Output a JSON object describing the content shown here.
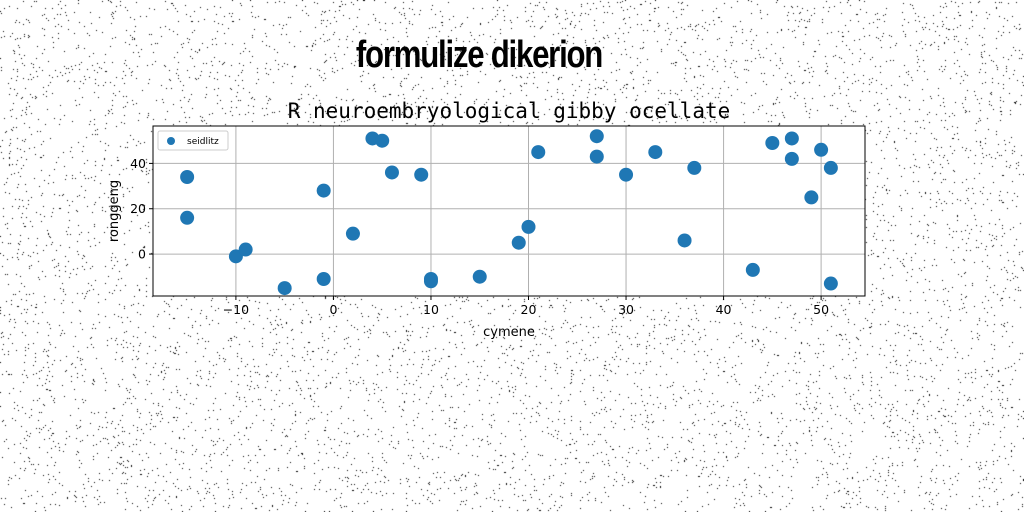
{
  "page": {
    "title": "formulize dikerion"
  },
  "chart_data": {
    "type": "scatter",
    "title": "R neuroembryological gibby ocellate",
    "xlabel": "cymene",
    "ylabel": "ronggeng",
    "xlim": [
      -18.5,
      54.5
    ],
    "ylim": [
      -18.5,
      56.5
    ],
    "xticks": [
      -10,
      0,
      10,
      20,
      30,
      40,
      50
    ],
    "yticks": [
      0,
      20,
      40
    ],
    "xtick_labels": [
      "−10",
      "0",
      "10",
      "20",
      "30",
      "40",
      "50"
    ],
    "ytick_labels": [
      "0",
      "20",
      "40"
    ],
    "grid": true,
    "legend_position": "top-left",
    "color": "#1f77b4",
    "series": [
      {
        "name": "seidlitz",
        "x": [
          -15,
          -15,
          -10,
          -9,
          -5,
          -1,
          -1,
          2,
          4,
          5,
          6,
          9,
          10,
          10,
          15,
          19,
          20,
          21,
          27,
          27,
          30,
          33,
          36,
          37,
          43,
          45,
          47,
          47,
          49,
          50,
          51,
          51
        ],
        "y": [
          34,
          16,
          -1,
          2,
          -15,
          28,
          -11,
          9,
          51,
          50,
          36,
          35,
          -11,
          -12,
          -10,
          5,
          12,
          45,
          52,
          43,
          35,
          45,
          6,
          38,
          -7,
          49,
          51,
          42,
          25,
          46,
          38,
          -13
        ]
      }
    ]
  }
}
